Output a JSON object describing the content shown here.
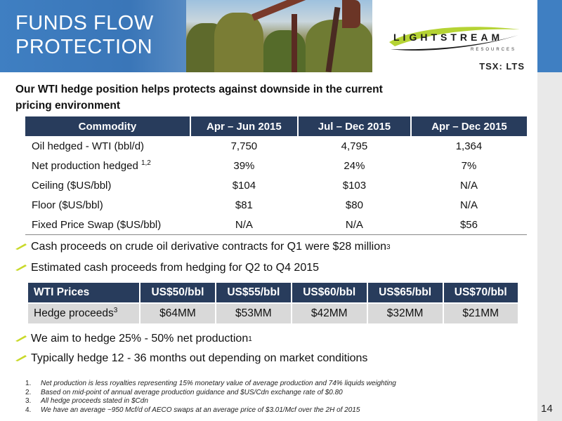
{
  "header": {
    "title": "FUNDS FLOW\nPROTECTION",
    "logo_text": "LIGHTSTREAM",
    "logo_sub": "RESOURCES",
    "ticker": "TSX: LTS",
    "accent": "#3f7fc2",
    "logo_green": "#b5d334"
  },
  "subtitle": "Our WTI hedge position helps protects against downside in the current pricing environment",
  "hedge_table": {
    "headers": [
      "Commodity",
      "Apr – Jun 2015",
      "Jul – Dec 2015",
      "Apr – Dec 2015"
    ],
    "rows": [
      {
        "label": "Oil hedged - WTI (bbl/d)",
        "sup": "",
        "v": [
          "7,750",
          "4,795",
          "1,364"
        ]
      },
      {
        "label": "Net production hedged ",
        "sup": "1,2",
        "v": [
          "39%",
          "24%",
          "7%"
        ]
      },
      {
        "label": "Ceiling ($US/bbl)",
        "sup": "",
        "v": [
          "$104",
          "$103",
          "N/A"
        ]
      },
      {
        "label": "Floor ($US/bbl)",
        "sup": "",
        "v": [
          "$81",
          "$80",
          "N/A"
        ]
      },
      {
        "label": "Fixed Price Swap ($US/bbl)",
        "sup": "",
        "v": [
          "N/A",
          "N/A",
          "$56"
        ]
      }
    ],
    "header_color": "#283c5c"
  },
  "bullets": {
    "b1": "Cash proceeds on crude oil derivative contracts for Q1 were $28 million",
    "b1_sup": "3",
    "b2": "Estimated cash proceeds from hedging for Q2 to Q4 2015",
    "b3": "We aim to hedge 25% - 50% net production",
    "b3_sup": "1",
    "b4": "Typically hedge 12 - 36 months out depending on market conditions",
    "icon": "pencil-bullet-icon"
  },
  "price_table": {
    "headers": [
      "WTI Prices",
      "US$50/bbl",
      "US$55/bbl",
      "US$60/bbl",
      "US$65/bbl",
      "US$70/bbl"
    ],
    "row_label": "Hedge proceeds",
    "row_sup": "3",
    "values": [
      "$64MM",
      "$53MM",
      "$42MM",
      "$32MM",
      "$21MM"
    ]
  },
  "footnotes": [
    {
      "n": "1.",
      "text": "Net production is less royalties representing 15% monetary value of average production and 74% liquids weighting"
    },
    {
      "n": "2.",
      "text": "Based on mid-point of annual average production guidance and $US/Cdn exchange rate of $0.80"
    },
    {
      "n": "3.",
      "text": "All hedge proceeds stated in $Cdn"
    },
    {
      "n": "4.",
      "text": "We have an average ~950 Mcf/d of AECO swaps at an average price of $3.01/Mcf over the 2H of 2015"
    }
  ],
  "page_number": "14"
}
